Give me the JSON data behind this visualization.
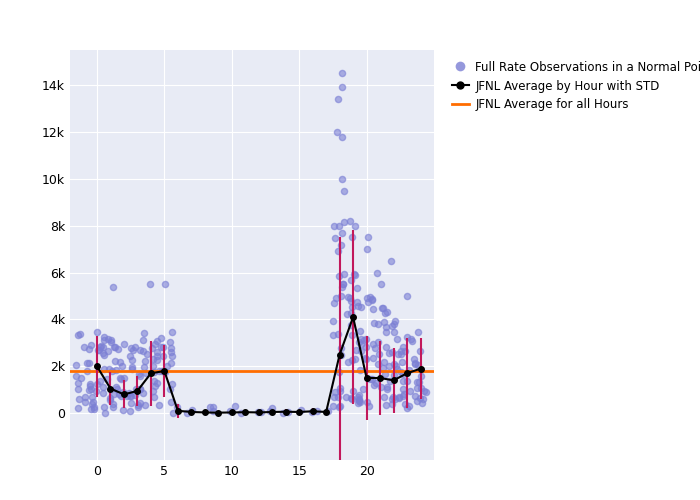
{
  "scatter_color": "#7B7FD4",
  "scatter_alpha": 0.6,
  "scatter_size": 20,
  "line_color": "black",
  "line_marker": "o",
  "line_markersize": 4,
  "errorbar_color": "#C2185B",
  "hline_color": "#FF6D00",
  "hline_value": 1800,
  "legend_labels": [
    "Full Rate Observations in a Normal Point",
    "JFNL Average by Hour with STD",
    "JFNL Average for all Hours"
  ],
  "xlim": [
    -2,
    25
  ],
  "ylim": [
    -2000,
    15500
  ],
  "yticks": [
    0,
    2000,
    4000,
    6000,
    8000,
    10000,
    12000,
    14000
  ],
  "ytick_labels": [
    "0",
    "2k",
    "4k",
    "6k",
    "8k",
    "10k",
    "12k",
    "14k"
  ],
  "xticks": [
    0,
    5,
    10,
    15,
    20
  ],
  "plot_bg_color": "#E8EBF5",
  "fig_bg_color": "#ffffff",
  "avg_hours": [
    0,
    1,
    2,
    3,
    4,
    5,
    6,
    7,
    8,
    9,
    10,
    11,
    12,
    13,
    14,
    15,
    16,
    17,
    18,
    19,
    20,
    21,
    22,
    23,
    24
  ],
  "avg_values": [
    2000,
    1050,
    800,
    950,
    1700,
    1800,
    100,
    50,
    30,
    20,
    30,
    40,
    30,
    50,
    60,
    50,
    80,
    50,
    2500,
    4100,
    1500,
    1500,
    1400,
    1700,
    1900
  ],
  "avg_stds": [
    1300,
    700,
    600,
    650,
    1400,
    1100,
    300,
    100,
    80,
    60,
    80,
    100,
    80,
    100,
    120,
    100,
    150,
    100,
    5000,
    3700,
    1800,
    1600,
    1400,
    1500,
    1300
  ],
  "random_seed": 42
}
